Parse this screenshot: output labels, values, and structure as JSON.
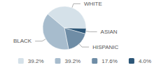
{
  "chart_data": {
    "type": "pie",
    "categories": [
      "WHITE",
      "ASIAN",
      "HISPANIC",
      "BLACK"
    ],
    "values": [
      39.2,
      4.0,
      17.6,
      39.2
    ],
    "value_labels": [
      "39.2%",
      "4.0%",
      "17.6%",
      "39.2%"
    ],
    "colors": [
      "#d5e1e9",
      "#2c5677",
      "#6f8da6",
      "#a7bccd"
    ],
    "legend": "bottom"
  }
}
